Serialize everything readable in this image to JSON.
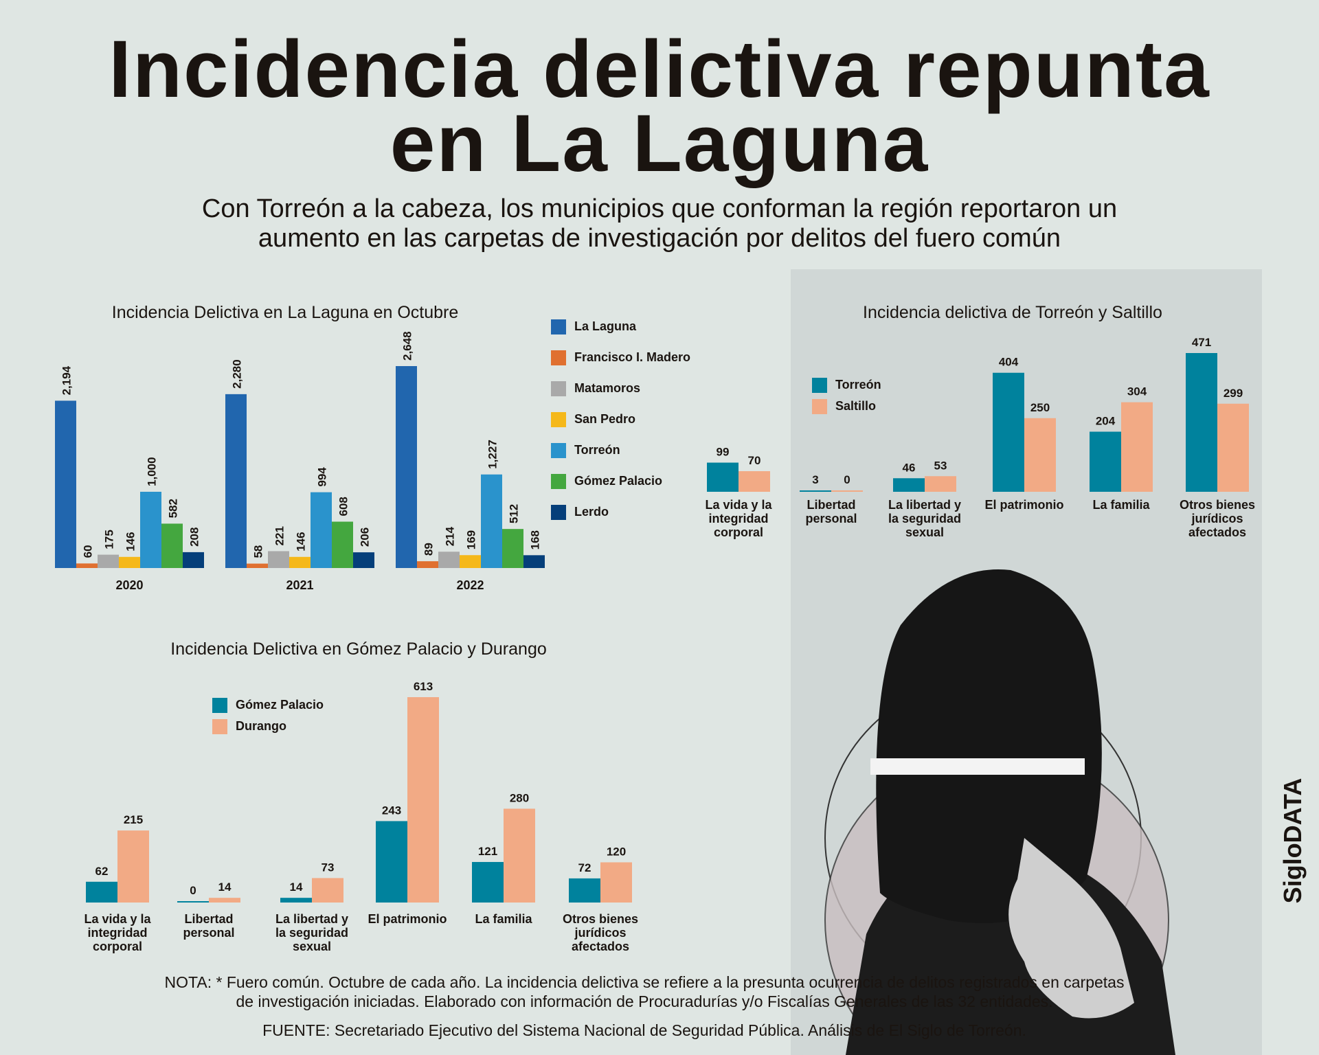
{
  "title": {
    "line1": "Incidencia delictiva repunta",
    "line2": "en La Laguna"
  },
  "subtitle": {
    "line1": "Con Torreón a la cabeza, los municipios que conforman la región reportaron un",
    "line2": "aumento en las carpetas de investigación por delitos del fuero común"
  },
  "brand": "SigloDATA",
  "notes": {
    "line1": "NOTA: * Fuero común. Octubre de cada año. La incidencia delictiva se refiere a la presunta ocurrencia de delitos registrados en carpetas",
    "line2": "de investigación iniciadas. Elaborado con información de Procuradurías y/o Fiscalías Generales de las 32 entidades.",
    "source": "FUENTE: Secretariado Ejecutivo del Sistema Nacional de Seguridad Pública. Análisis de El Siglo de Torreón."
  },
  "chart_data": [
    {
      "type": "bar",
      "title": "Incidencia Delictiva en La Laguna en Octubre",
      "categories": [
        "2020",
        "2021",
        "2022"
      ],
      "legend": "right",
      "series": [
        {
          "name": "La Laguna",
          "color": "#2166ae",
          "values": [
            2194,
            2280,
            2648
          ],
          "labels": [
            "2,194",
            "2,280",
            "2,648"
          ]
        },
        {
          "name": "Francisco I. Madero",
          "color": "#e07030",
          "values": [
            60,
            58,
            89
          ],
          "labels": [
            "60",
            "58",
            "89"
          ]
        },
        {
          "name": "Matamoros",
          "color": "#a9a9a9",
          "values": [
            175,
            221,
            214
          ],
          "labels": [
            "175",
            "221",
            "214"
          ]
        },
        {
          "name": "San Pedro",
          "color": "#f5b81a",
          "values": [
            146,
            146,
            169
          ],
          "labels": [
            "146",
            "146",
            "169"
          ]
        },
        {
          "name": "Torreón",
          "color": "#2a93cc",
          "values": [
            1000,
            994,
            1227
          ],
          "labels": [
            "1,000",
            "994",
            "1,227"
          ]
        },
        {
          "name": "Gómez Palacio",
          "color": "#44a73f",
          "values": [
            582,
            608,
            512
          ],
          "labels": [
            "582",
            "608",
            "512"
          ]
        },
        {
          "name": "Lerdo",
          "color": "#053f7a",
          "values": [
            208,
            206,
            168
          ],
          "labels": [
            "208",
            "206",
            "168"
          ]
        }
      ]
    },
    {
      "type": "bar",
      "title": "Incidencia delictiva de Torreón y Saltillo",
      "categories": [
        "La vida y la|integridad|corporal",
        "Libertad|personal",
        "La libertad y|la seguridad|sexual",
        "El patrimonio",
        "La familia",
        "Otros bienes|jurídicos|afectados"
      ],
      "legend": "top-left",
      "series": [
        {
          "name": "Torreón",
          "color": "#00829d",
          "values": [
            99,
            3,
            46,
            404,
            204,
            471
          ]
        },
        {
          "name": "Saltillo",
          "color": "#f2aa85",
          "values": [
            70,
            0,
            53,
            250,
            304,
            299
          ]
        }
      ]
    },
    {
      "type": "bar",
      "title": "Incidencia Delictiva en Gómez Palacio y Durango",
      "categories": [
        "La vida y la|integridad|corporal",
        "Libertad|personal",
        "La libertad y|la seguridad|sexual",
        "El patrimonio",
        "La familia",
        "Otros bienes|jurídicos|afectados"
      ],
      "legend": "top-left",
      "series": [
        {
          "name": "Gómez Palacio",
          "color": "#00829d",
          "values": [
            62,
            0,
            14,
            243,
            121,
            72
          ]
        },
        {
          "name": "Durango",
          "color": "#f2aa85",
          "values": [
            215,
            14,
            73,
            613,
            280,
            120
          ]
        }
      ]
    }
  ]
}
